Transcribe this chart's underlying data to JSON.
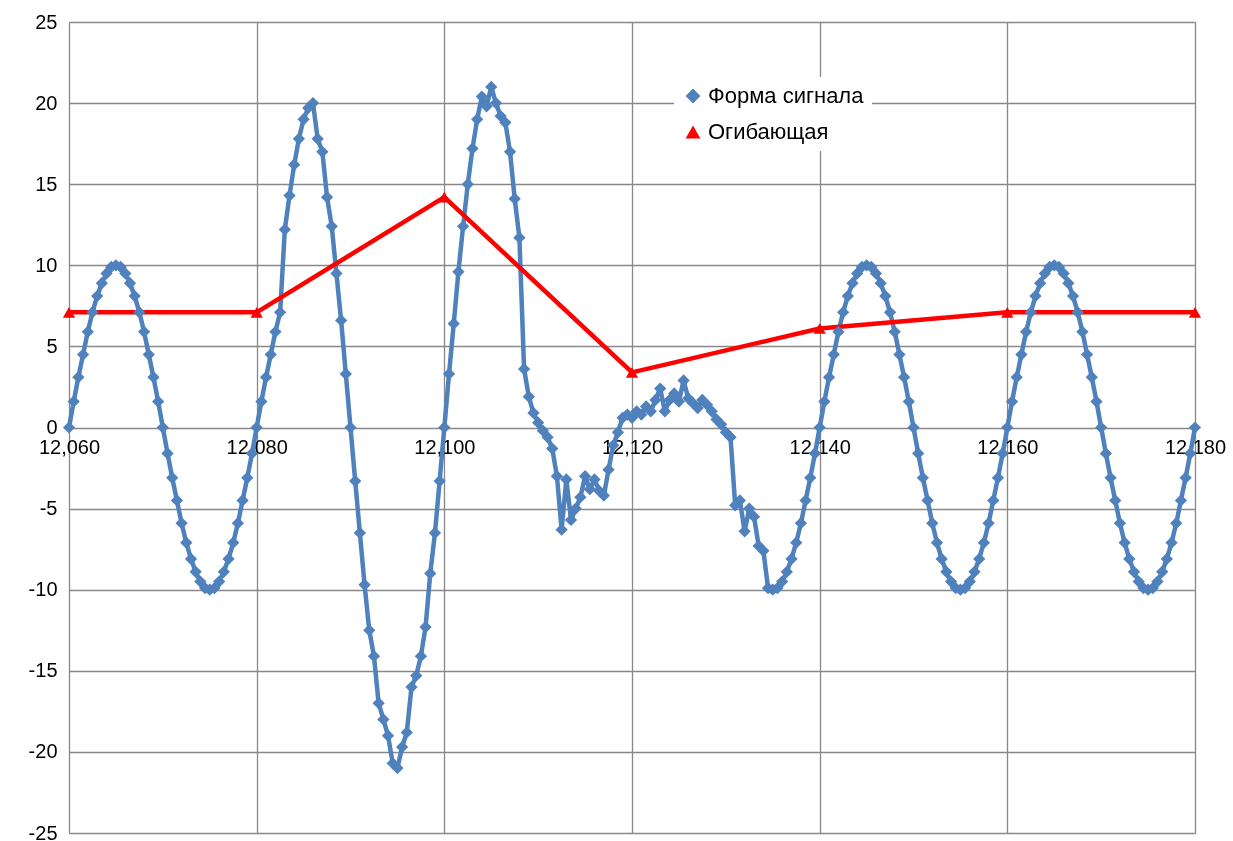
{
  "chart_data": {
    "type": "line",
    "xlim": [
      12060,
      12180
    ],
    "xticks": [
      {
        "value": 12060,
        "label": "12,060"
      },
      {
        "value": 12080,
        "label": "12,080"
      },
      {
        "value": 12100,
        "label": "12,100"
      },
      {
        "value": 12120,
        "label": "12,120"
      },
      {
        "value": 12140,
        "label": "12,140"
      },
      {
        "value": 12160,
        "label": "12,160"
      },
      {
        "value": 12180,
        "label": "12,180"
      }
    ],
    "ylim": [
      -25,
      25
    ],
    "yticks": [
      -25,
      -20,
      -15,
      -10,
      -5,
      0,
      5,
      10,
      15,
      20,
      25
    ],
    "grid": true,
    "legend": "top right",
    "line_style": "solid",
    "series": [
      {
        "name": "Форма сигнала",
        "color": "#4f81bd",
        "marker": "diamond",
        "x": [
          12060,
          12060.5,
          12061,
          12061.5,
          12062,
          12062.5,
          12063,
          12063.5,
          12064,
          12064.5,
          12065,
          12065.5,
          12066,
          12066.5,
          12067,
          12067.5,
          12068,
          12068.5,
          12069,
          12069.5,
          12070,
          12070.5,
          12071,
          12071.5,
          12072,
          12072.5,
          12073,
          12073.5,
          12074,
          12074.5,
          12075,
          12075.5,
          12076,
          12076.5,
          12077,
          12077.5,
          12078,
          12078.5,
          12079,
          12079.5,
          12080,
          12080.5,
          12081,
          12081.5,
          12082,
          12082.5,
          12083,
          12083.5,
          12084,
          12084.5,
          12085,
          12085.5,
          12086,
          12086.5,
          12087,
          12087.5,
          12088,
          12088.5,
          12089,
          12089.5,
          12090,
          12090.5,
          12091,
          12091.5,
          12092,
          12092.5,
          12093,
          12093.5,
          12094,
          12094.5,
          12095,
          12095.5,
          12096,
          12096.5,
          12097,
          12097.5,
          12098,
          12098.5,
          12099,
          12099.5,
          12100,
          12100.5,
          12101,
          12101.5,
          12102,
          12102.5,
          12103,
          12103.5,
          12104,
          12104.5,
          12105,
          12105.5,
          12106,
          12106.5,
          12107,
          12107.5,
          12108,
          12108.5,
          12109,
          12109.5,
          12110,
          12110.5,
          12111,
          12111.5,
          12112,
          12112.5,
          12113,
          12113.5,
          12114,
          12114.5,
          12115,
          12115.5,
          12116,
          12116.5,
          12117,
          12117.5,
          12118,
          12118.5,
          12119,
          12119.5,
          12120,
          12120.5,
          12121,
          12121.5,
          12122,
          12122.5,
          12123,
          12123.5,
          12124,
          12124.5,
          12125,
          12125.5,
          12126,
          12126.5,
          12127,
          12127.5,
          12128,
          12128.5,
          12129,
          12129.5,
          12130,
          12130.5,
          12131,
          12131.5,
          12132,
          12132.5,
          12133,
          12133.5,
          12134,
          12134.5,
          12135,
          12135.5,
          12136,
          12136.5,
          12137,
          12137.5,
          12138,
          12138.5,
          12139,
          12139.5,
          12140,
          12140.5,
          12141,
          12141.5,
          12142,
          12142.5,
          12143,
          12143.5,
          12144,
          12144.5,
          12145,
          12145.5,
          12146,
          12146.5,
          12147,
          12147.5,
          12148,
          12148.5,
          12149,
          12149.5,
          12150,
          12150.5,
          12151,
          12151.5,
          12152,
          12152.5,
          12153,
          12153.5,
          12154,
          12154.5,
          12155,
          12155.5,
          12156,
          12156.5,
          12157,
          12157.5,
          12158,
          12158.5,
          12159,
          12159.5,
          12160,
          12160.5,
          12161,
          12161.5,
          12162,
          12162.5,
          12163,
          12163.5,
          12164,
          12164.5,
          12165,
          12165.5,
          12166,
          12166.5,
          12167,
          12167.5,
          12168,
          12168.5,
          12169,
          12169.5,
          12170,
          12170.5,
          12171,
          12171.5,
          12172,
          12172.5,
          12173,
          12173.5,
          12174,
          12174.5,
          12175,
          12175.5,
          12176,
          12176.5,
          12177,
          12177.5,
          12178,
          12178.5,
          12179,
          12179.5,
          12180
        ],
        "values": [
          0,
          1.6,
          3.1,
          4.5,
          5.9,
          7.1,
          8.1,
          8.9,
          9.5,
          9.9,
          10,
          9.9,
          9.5,
          8.9,
          8.1,
          7.1,
          5.9,
          4.5,
          3.1,
          1.6,
          0,
          -1.6,
          -3.1,
          -4.5,
          -5.9,
          -7.1,
          -8.1,
          -8.9,
          -9.5,
          -9.9,
          -10,
          -9.9,
          -9.5,
          -8.9,
          -8.1,
          -7.1,
          -5.9,
          -4.5,
          -3.1,
          -1.6,
          0,
          1.6,
          3.1,
          4.5,
          5.9,
          7.1,
          12.2,
          14.3,
          16.2,
          17.8,
          19,
          19.7,
          20,
          17.8,
          17,
          14.2,
          12.4,
          9.5,
          6.6,
          3.3,
          0,
          -3.3,
          -6.5,
          -9.7,
          -12.5,
          -14.1,
          -17,
          -18,
          -19,
          -20.7,
          -21,
          -19.7,
          -18.8,
          -16,
          -15.3,
          -14.1,
          -12.3,
          -9,
          -6.5,
          -3.3,
          0,
          3.3,
          6.4,
          9.6,
          12.4,
          15,
          17.2,
          19,
          20.4,
          19.8,
          21,
          20,
          19.2,
          18.8,
          17,
          14.1,
          11.7,
          3.6,
          1.9,
          0.9,
          0.3,
          -0.2,
          -0.6,
          -1.3,
          -3,
          -6.3,
          -3.2,
          -5.7,
          -5,
          -4.3,
          -3,
          -3.8,
          -3.2,
          -3.9,
          -4.2,
          -2.6,
          -1.1,
          -0.3,
          0.6,
          0.8,
          0.6,
          1,
          0.8,
          1.3,
          1,
          1.7,
          2.4,
          1,
          1.7,
          2.1,
          1.6,
          2.9,
          1.8,
          1.5,
          1.2,
          1.7,
          1.4,
          1,
          0.5,
          0.2,
          -0.3,
          -0.6,
          -4.8,
          -4.5,
          -6.4,
          -5,
          -5.5,
          -7.3,
          -7.6,
          -9.9,
          -10,
          -9.9,
          -9.5,
          -8.9,
          -8.1,
          -7.1,
          -5.9,
          -4.5,
          -3.1,
          -1.6,
          0,
          1.6,
          3.1,
          4.5,
          5.9,
          7.1,
          8.1,
          8.9,
          9.5,
          9.9,
          10,
          9.9,
          9.5,
          8.9,
          8.1,
          7.1,
          5.9,
          4.5,
          3.1,
          1.6,
          0,
          -1.6,
          -3.1,
          -4.5,
          -5.9,
          -7.1,
          -8.1,
          -8.9,
          -9.5,
          -9.9,
          -10,
          -9.9,
          -9.5,
          -8.9,
          -8.1,
          -7.1,
          -5.9,
          -4.5,
          -3.1,
          -1.6,
          0,
          1.6,
          3.1,
          4.5,
          5.9,
          7.1,
          8.1,
          8.9,
          9.5,
          9.9,
          10,
          9.9,
          9.5,
          8.9,
          8.1,
          7.1,
          5.9,
          4.5,
          3.1,
          1.6,
          0,
          -1.6,
          -3.1,
          -4.5,
          -5.9,
          -7.1,
          -8.1,
          -8.9,
          -9.5,
          -9.9,
          -10,
          -9.9,
          -9.5,
          -8.9,
          -8.1,
          -7.1,
          -5.9,
          -4.5,
          -3.1,
          -1.6,
          0
        ]
      },
      {
        "name": "Огибающая",
        "color": "#ff0000",
        "marker": "triangle",
        "x": [
          12060,
          12080,
          12100,
          12120,
          12140,
          12160,
          12180
        ],
        "values": [
          7.1,
          7.1,
          14.2,
          3.4,
          6.1,
          7.1,
          7.1
        ]
      }
    ]
  }
}
